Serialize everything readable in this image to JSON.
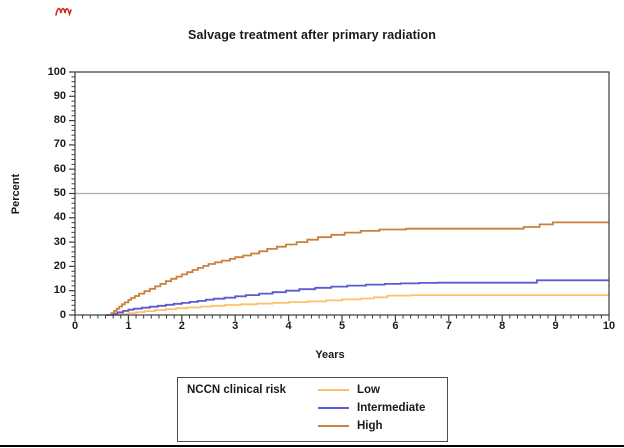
{
  "chart_data": {
    "type": "line",
    "subtype": "step-function-cumulative-incidence",
    "title": "Salvage treatment after primary radiation",
    "xlabel": "Years",
    "ylabel": "Percent",
    "xlim": [
      0,
      10
    ],
    "ylim": [
      0,
      100
    ],
    "xticks": [
      0,
      1,
      2,
      3,
      4,
      5,
      6,
      7,
      8,
      9,
      10
    ],
    "yticks": [
      0,
      10,
      20,
      30,
      40,
      50,
      60,
      70,
      80,
      90,
      100
    ],
    "x_minor_per_interval": 6,
    "y_minor_step": 2,
    "grid": false,
    "reference_line_y": 50,
    "legend": {
      "title": "NCCN clinical risk",
      "position": "bottom",
      "entries": [
        {
          "label": "Low",
          "color": "#FFC06E"
        },
        {
          "label": "Intermediate",
          "color": "#5A5AD2"
        },
        {
          "label": "High",
          "color": "#C9813E"
        }
      ]
    },
    "series": [
      {
        "name": "Low",
        "color": "#FFC06E",
        "points": [
          [
            0.62,
            0
          ],
          [
            0.85,
            0.4
          ],
          [
            1.0,
            0.8
          ],
          [
            1.15,
            1.2
          ],
          [
            1.3,
            1.6
          ],
          [
            1.5,
            2.0
          ],
          [
            1.7,
            2.4
          ],
          [
            1.9,
            2.8
          ],
          [
            2.1,
            3.1
          ],
          [
            2.35,
            3.5
          ],
          [
            2.55,
            3.8
          ],
          [
            2.8,
            4.1
          ],
          [
            3.1,
            4.4
          ],
          [
            3.4,
            4.7
          ],
          [
            3.7,
            5.0
          ],
          [
            4.0,
            5.3
          ],
          [
            4.35,
            5.6
          ],
          [
            4.7,
            6.0
          ],
          [
            5.0,
            6.4
          ],
          [
            5.35,
            6.8
          ],
          [
            5.6,
            7.3
          ],
          [
            5.85,
            8.0
          ],
          [
            6.3,
            8.2
          ],
          [
            10,
            8.2
          ]
        ]
      },
      {
        "name": "Intermediate",
        "color": "#5A5AD2",
        "points": [
          [
            0.58,
            0
          ],
          [
            0.72,
            0.6
          ],
          [
            0.8,
            1.1
          ],
          [
            0.9,
            1.7
          ],
          [
            1.0,
            2.2
          ],
          [
            1.1,
            2.6
          ],
          [
            1.25,
            3.0
          ],
          [
            1.4,
            3.4
          ],
          [
            1.55,
            3.8
          ],
          [
            1.7,
            4.2
          ],
          [
            1.85,
            4.6
          ],
          [
            2.0,
            5.0
          ],
          [
            2.15,
            5.4
          ],
          [
            2.3,
            5.8
          ],
          [
            2.45,
            6.3
          ],
          [
            2.6,
            6.7
          ],
          [
            2.8,
            7.1
          ],
          [
            3.0,
            7.7
          ],
          [
            3.2,
            8.2
          ],
          [
            3.45,
            8.8
          ],
          [
            3.7,
            9.4
          ],
          [
            3.95,
            10.0
          ],
          [
            4.2,
            10.6
          ],
          [
            4.5,
            11.2
          ],
          [
            4.8,
            11.7
          ],
          [
            5.1,
            12.1
          ],
          [
            5.45,
            12.5
          ],
          [
            5.8,
            12.8
          ],
          [
            6.1,
            13.0
          ],
          [
            6.45,
            13.2
          ],
          [
            6.8,
            13.3
          ],
          [
            8.65,
            14.3
          ],
          [
            10,
            14.3
          ]
        ]
      },
      {
        "name": "High",
        "color": "#C9813E",
        "points": [
          [
            0.6,
            0
          ],
          [
            0.68,
            0.8
          ],
          [
            0.73,
            1.7
          ],
          [
            0.78,
            2.6
          ],
          [
            0.83,
            3.5
          ],
          [
            0.88,
            4.4
          ],
          [
            0.93,
            5.2
          ],
          [
            1.0,
            6.2
          ],
          [
            1.05,
            7.0
          ],
          [
            1.12,
            7.8
          ],
          [
            1.2,
            8.8
          ],
          [
            1.3,
            9.8
          ],
          [
            1.4,
            10.8
          ],
          [
            1.5,
            11.8
          ],
          [
            1.6,
            12.8
          ],
          [
            1.7,
            13.9
          ],
          [
            1.8,
            14.9
          ],
          [
            1.9,
            15.8
          ],
          [
            2.0,
            16.7
          ],
          [
            2.1,
            17.6
          ],
          [
            2.2,
            18.5
          ],
          [
            2.3,
            19.4
          ],
          [
            2.4,
            20.2
          ],
          [
            2.5,
            21.0
          ],
          [
            2.62,
            21.7
          ],
          [
            2.75,
            22.4
          ],
          [
            2.9,
            23.1
          ],
          [
            3.0,
            23.8
          ],
          [
            3.15,
            24.5
          ],
          [
            3.3,
            25.3
          ],
          [
            3.45,
            26.2
          ],
          [
            3.6,
            27.2
          ],
          [
            3.78,
            28.1
          ],
          [
            3.95,
            29.0
          ],
          [
            4.15,
            30.0
          ],
          [
            4.35,
            31.0
          ],
          [
            4.55,
            32.0
          ],
          [
            4.8,
            33.0
          ],
          [
            5.05,
            33.9
          ],
          [
            5.35,
            34.6
          ],
          [
            5.7,
            35.2
          ],
          [
            6.2,
            35.5
          ],
          [
            8.4,
            36.2
          ],
          [
            8.7,
            37.3
          ],
          [
            8.95,
            38.1
          ],
          [
            10,
            38.1
          ]
        ]
      }
    ]
  },
  "colors": {
    "frame": "#3d3d3d",
    "tick": "#3d3d3d",
    "text": "#1a1a1a",
    "reference_line": "#ababab",
    "bottom_rule": "#000000",
    "red_pen_mark": "#d42b1e",
    "background": "#ffffff"
  }
}
